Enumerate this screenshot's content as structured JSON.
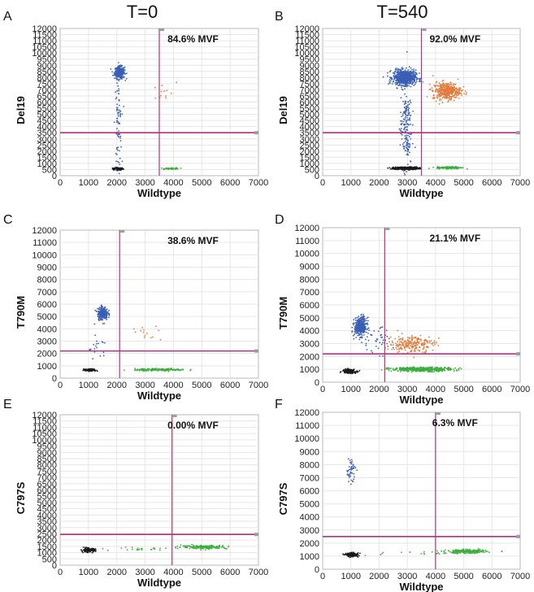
{
  "column_titles": [
    "T=0",
    "T=540"
  ],
  "colors": {
    "frame": "#b8b8b8",
    "grid": "#e6e6e6",
    "threshold_line": "#b0347a",
    "double_negative": "#1a1a1a",
    "mutant_positive": "#3a5fb5",
    "wildtype_positive": "#3cae3c",
    "double_positive": "#e07a3a"
  },
  "chart_data": [
    {
      "panel": "A",
      "type": "scatter",
      "column": 0,
      "row": 0,
      "xlabel": "Wildtype",
      "ylabel": "Del19",
      "annotation": "84.6% MVF",
      "xlim": [
        0,
        7000
      ],
      "ylim": [
        0,
        12000
      ],
      "xticks": [
        "0",
        "1000",
        "2000",
        "3000",
        "4000",
        "5000",
        "6000",
        "7000"
      ],
      "yticks": [
        "0",
        "500",
        "1000",
        "1500",
        "2000",
        "2500",
        "3000",
        "3500",
        "4000",
        "4500",
        "5000",
        "5500",
        "6000",
        "6500",
        "7000",
        "7500",
        "8000",
        "8500",
        "9000",
        "9500",
        "10000",
        "10500",
        "11000",
        "11500",
        "12000"
      ],
      "threshold_x": 3500,
      "threshold_y": 3500,
      "clusters": [
        {
          "name": "double-negative",
          "color": "#1a1a1a",
          "x": 2050,
          "y": 550,
          "sx": 90,
          "sy": 50,
          "n": 140
        },
        {
          "name": "mutant-positive",
          "color": "#3a5fb5",
          "x": 2100,
          "y": 8400,
          "sx": 90,
          "sy": 250,
          "n": 300
        },
        {
          "name": "wildtype-positive",
          "color": "#3cae3c",
          "x": 3950,
          "y": 580,
          "sx": 130,
          "sy": 35,
          "n": 50
        },
        {
          "name": "rain",
          "color": "#3a5fb5",
          "x": 2050,
          "y": 4200,
          "sx": 60,
          "sy": 1800,
          "n": 80
        },
        {
          "name": "double-positive",
          "color": "#e07a3a",
          "x": 3600,
          "y": 6800,
          "sx": 250,
          "sy": 400,
          "n": 12
        }
      ]
    },
    {
      "panel": "B",
      "type": "scatter",
      "column": 1,
      "row": 0,
      "xlabel": "Wildtype",
      "ylabel": "Del19",
      "annotation": "92.0% MVF",
      "xlim": [
        0,
        7000
      ],
      "ylim": [
        0,
        12000
      ],
      "xticks": [
        "0",
        "1000",
        "2000",
        "3000",
        "4000",
        "5000",
        "6000",
        "7000"
      ],
      "yticks": [
        "0",
        "500",
        "1000",
        "1500",
        "2000",
        "2500",
        "3000",
        "3500",
        "4000",
        "4500",
        "5000",
        "5500",
        "6000",
        "6500",
        "7000",
        "7500",
        "8000",
        "8500",
        "9000",
        "9500",
        "10000",
        "10500",
        "11000",
        "11500",
        "12000"
      ],
      "threshold_x": 3500,
      "threshold_y": 3500,
      "clusters": [
        {
          "name": "double-negative",
          "color": "#1a1a1a",
          "x": 2950,
          "y": 600,
          "sx": 220,
          "sy": 55,
          "n": 350
        },
        {
          "name": "mutant-positive",
          "color": "#3a5fb5",
          "x": 2900,
          "y": 8000,
          "sx": 200,
          "sy": 300,
          "n": 700
        },
        {
          "name": "wildtype-positive",
          "color": "#3cae3c",
          "x": 4500,
          "y": 650,
          "sx": 220,
          "sy": 45,
          "n": 160
        },
        {
          "name": "double-positive",
          "color": "#e07a3a",
          "x": 4400,
          "y": 6900,
          "sx": 250,
          "sy": 350,
          "n": 380
        },
        {
          "name": "rain",
          "color": "#3a5fb5",
          "x": 2950,
          "y": 4000,
          "sx": 100,
          "sy": 1700,
          "n": 180
        }
      ]
    },
    {
      "panel": "C",
      "type": "scatter",
      "column": 0,
      "row": 1,
      "xlabel": "Wildtype",
      "ylabel": "T790M",
      "annotation": "38.6% MVF",
      "xlim": [
        0,
        7000
      ],
      "ylim": [
        0,
        12000
      ],
      "xticks": [
        "0",
        "1000",
        "2000",
        "3000",
        "4000",
        "5000",
        "6000",
        "7000"
      ],
      "yticks": [
        "0",
        "1000",
        "2000",
        "3000",
        "4000",
        "5000",
        "6000",
        "7000",
        "8000",
        "9000",
        "10000",
        "11000",
        "12000"
      ],
      "threshold_x": 2100,
      "threshold_y": 2200,
      "clusters": [
        {
          "name": "double-negative",
          "color": "#1a1a1a",
          "x": 1050,
          "y": 650,
          "sx": 110,
          "sy": 50,
          "n": 90
        },
        {
          "name": "mutant-positive",
          "color": "#3a5fb5",
          "x": 1500,
          "y": 5250,
          "sx": 90,
          "sy": 270,
          "n": 230
        },
        {
          "name": "wildtype-positive",
          "color": "#3cae3c",
          "x": 3550,
          "y": 680,
          "sx": 450,
          "sy": 45,
          "n": 170
        },
        {
          "name": "double-positive",
          "color": "#e07a3a",
          "x": 3100,
          "y": 3600,
          "sx": 300,
          "sy": 400,
          "n": 14
        },
        {
          "name": "rain",
          "color": "#3a5fb5",
          "x": 1300,
          "y": 2400,
          "sx": 200,
          "sy": 600,
          "n": 20
        }
      ]
    },
    {
      "panel": "D",
      "type": "scatter",
      "column": 1,
      "row": 1,
      "xlabel": "Wildtype",
      "ylabel": "T790M",
      "annotation": "21.1% MVF",
      "xlim": [
        0,
        7000
      ],
      "ylim": [
        0,
        12000
      ],
      "xticks": [
        "0",
        "1000",
        "2000",
        "3000",
        "4000",
        "5000",
        "6000",
        "7000"
      ],
      "yticks": [
        "0",
        "1000",
        "2000",
        "3000",
        "4000",
        "5000",
        "6000",
        "7000",
        "8000",
        "9000",
        "10000",
        "11000",
        "12000"
      ],
      "threshold_x": 2200,
      "threshold_y": 2200,
      "clusters": [
        {
          "name": "double-negative",
          "color": "#1a1a1a",
          "x": 950,
          "y": 850,
          "sx": 120,
          "sy": 80,
          "n": 170
        },
        {
          "name": "mutant-positive",
          "color": "#3a5fb5",
          "x": 1350,
          "y": 4300,
          "sx": 110,
          "sy": 350,
          "n": 380
        },
        {
          "name": "wildtype-positive",
          "color": "#3cae3c",
          "x": 3500,
          "y": 1000,
          "sx": 550,
          "sy": 80,
          "n": 420
        },
        {
          "name": "double-positive",
          "color": "#e07a3a",
          "x": 3150,
          "y": 2950,
          "sx": 400,
          "sy": 350,
          "n": 230
        },
        {
          "name": "rain",
          "color": "#3a5fb5",
          "x": 1900,
          "y": 3200,
          "sx": 300,
          "sy": 500,
          "n": 40
        }
      ]
    },
    {
      "panel": "E",
      "type": "scatter",
      "column": 0,
      "row": 2,
      "xlabel": "Wildtype",
      "ylabel": "C797S",
      "annotation": "0.00% MVF",
      "xlim": [
        0,
        7000
      ],
      "ylim": [
        0,
        12000
      ],
      "xticks": [
        "0",
        "1000",
        "2000",
        "3000",
        "4000",
        "5000",
        "6000",
        "7000"
      ],
      "yticks": [
        "0",
        "500",
        "1000",
        "1500",
        "2000",
        "2500",
        "3000",
        "3500",
        "4000",
        "4500",
        "5000",
        "5500",
        "6000",
        "6500",
        "7000",
        "7500",
        "8000",
        "8500",
        "9000",
        "9500",
        "10000",
        "10500",
        "11000",
        "11500",
        "12000"
      ],
      "threshold_x": 3950,
      "threshold_y": 2450,
      "clusters": [
        {
          "name": "double-negative",
          "color": "#1a1a1a",
          "x": 1000,
          "y": 1200,
          "sx": 120,
          "sy": 80,
          "n": 130
        },
        {
          "name": "wildtype-positive",
          "color": "#3cae3c",
          "x": 5100,
          "y": 1450,
          "sx": 400,
          "sy": 70,
          "n": 200
        },
        {
          "name": "rain",
          "color": "#3cae3c",
          "x": 3000,
          "y": 1300,
          "sx": 800,
          "sy": 80,
          "n": 25
        }
      ]
    },
    {
      "panel": "F",
      "type": "scatter",
      "column": 1,
      "row": 2,
      "xlabel": "Wildtype",
      "ylabel": "C797S",
      "annotation": "6.3% MVF",
      "xlim": [
        0,
        7000
      ],
      "ylim": [
        0,
        12000
      ],
      "xticks": [
        "0",
        "1000",
        "2000",
        "3000",
        "4000",
        "5000",
        "6000",
        "7000"
      ],
      "yticks": [
        "0",
        "1000",
        "2000",
        "3000",
        "4000",
        "5000",
        "6000",
        "7000",
        "8000",
        "9000",
        "10000",
        "11000",
        "12000"
      ],
      "threshold_x": 4000,
      "threshold_y": 2500,
      "clusters": [
        {
          "name": "double-negative",
          "color": "#1a1a1a",
          "x": 1050,
          "y": 1100,
          "sx": 110,
          "sy": 70,
          "n": 150
        },
        {
          "name": "mutant-positive",
          "color": "#3a5fb5",
          "x": 1000,
          "y": 7600,
          "sx": 80,
          "sy": 450,
          "n": 50
        },
        {
          "name": "wildtype-positive",
          "color": "#3cae3c",
          "x": 5100,
          "y": 1350,
          "sx": 350,
          "sy": 70,
          "n": 240
        },
        {
          "name": "rain",
          "color": "#3cae3c",
          "x": 3000,
          "y": 1200,
          "sx": 900,
          "sy": 80,
          "n": 20
        }
      ]
    }
  ]
}
